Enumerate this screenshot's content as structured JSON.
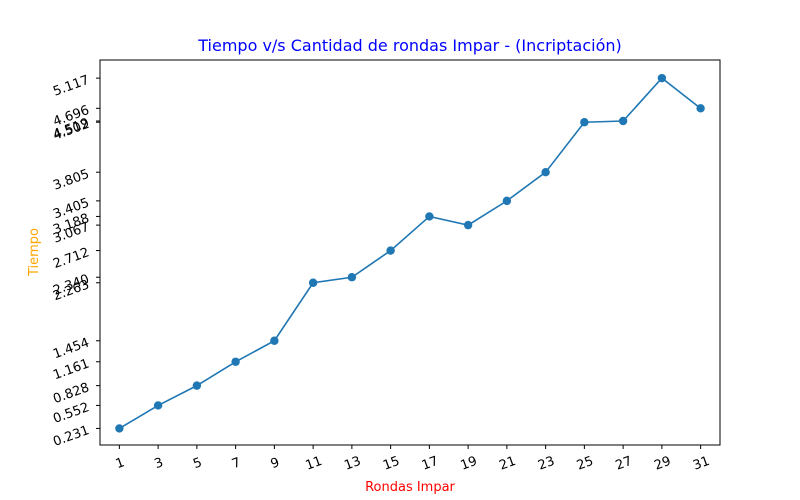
{
  "chart_data": {
    "type": "line",
    "title": "Tiempo v/s Cantidad de rondas Impar - (Incriptación)",
    "xlabel": "Rondas Impar",
    "ylabel": "Tiempo",
    "x": [
      1,
      3,
      5,
      7,
      9,
      11,
      13,
      15,
      17,
      19,
      21,
      23,
      25,
      27,
      29,
      31
    ],
    "x_tick_labels": [
      "1",
      "3",
      "5",
      "7",
      "9",
      "11",
      "13",
      "15",
      "17",
      "19",
      "21",
      "23",
      "25",
      "27",
      "29",
      "31"
    ],
    "y_tick_labels": [
      "0.231",
      "0.552",
      "0.828",
      "1.161",
      "1.454",
      "2.263",
      "2.340",
      "2.712",
      "3.067",
      "3.188",
      "3.405",
      "3.805",
      "4.502",
      "4.519",
      "4.696",
      "5.117"
    ],
    "series": [
      {
        "values": [
          0.231,
          0.552,
          0.828,
          1.161,
          1.454,
          2.263,
          2.34,
          2.712,
          3.188,
          3.067,
          3.405,
          3.805,
          4.502,
          4.519,
          5.117,
          4.696
        ]
      }
    ],
    "xlim": [
      0.0,
      32.0
    ],
    "ylim": [
      0.0,
      5.37
    ],
    "grid": false,
    "legend": "none",
    "colors": {
      "line": "#1f77b4",
      "title": "#0000ff",
      "xlabel": "#ff0000",
      "ylabel": "#ffa500",
      "axis": "#000000"
    }
  }
}
